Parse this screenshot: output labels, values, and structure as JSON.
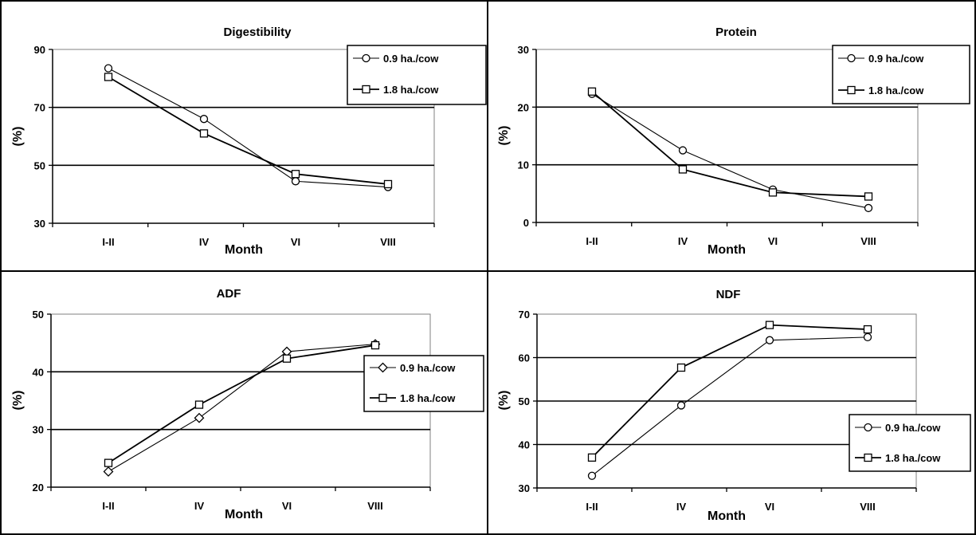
{
  "chart_data": [
    {
      "type": "line",
      "title": "Digestibility",
      "xlabel": "Month",
      "ylabel": "(%)",
      "categories": [
        "I-II",
        "IV",
        "VI",
        "VIII"
      ],
      "ylim": [
        30,
        90
      ],
      "yticks": [
        30,
        50,
        70,
        90
      ],
      "grid": "horizontal",
      "legend_position": "top-right",
      "series": [
        {
          "name": "0.9 ha./cow",
          "marker": "circle",
          "values": [
            83.5,
            66,
            44.5,
            42.5
          ]
        },
        {
          "name": "1.8 ha./cow",
          "marker": "square",
          "values": [
            80.5,
            61,
            47,
            43.5
          ]
        }
      ]
    },
    {
      "type": "line",
      "title": "Protein",
      "xlabel": "Month",
      "ylabel": "(%)",
      "categories": [
        "I-II",
        "IV",
        "VI",
        "VIII"
      ],
      "ylim": [
        0,
        30
      ],
      "yticks": [
        0,
        10,
        20,
        30
      ],
      "grid": "horizontal",
      "legend_position": "top-right",
      "series": [
        {
          "name": "0.9 ha./cow",
          "marker": "circle",
          "values": [
            22.3,
            12.5,
            5.7,
            2.5
          ]
        },
        {
          "name": "1.8 ha./cow",
          "marker": "square",
          "values": [
            22.7,
            9.2,
            5.2,
            4.5
          ]
        }
      ]
    },
    {
      "type": "line",
      "title": "ADF",
      "xlabel": "Month",
      "ylabel": "(%)",
      "categories": [
        "I-II",
        "IV",
        "VI",
        "VIII"
      ],
      "ylim": [
        20,
        50
      ],
      "yticks": [
        20,
        30,
        40,
        50
      ],
      "grid": "horizontal",
      "legend_position": "right",
      "series": [
        {
          "name": "0.9 ha./cow",
          "marker": "diamond",
          "values": [
            22.7,
            32,
            43.5,
            44.8
          ]
        },
        {
          "name": "1.8 ha./cow",
          "marker": "square",
          "values": [
            24.2,
            34.3,
            42.3,
            44.6
          ]
        }
      ]
    },
    {
      "type": "line",
      "title": "NDF",
      "xlabel": "Month",
      "ylabel": "(%)",
      "categories": [
        "I-II",
        "IV",
        "VI",
        "VIII"
      ],
      "ylim": [
        30,
        70
      ],
      "yticks": [
        30,
        40,
        50,
        60,
        70
      ],
      "grid": "horizontal",
      "legend_position": "lower-right",
      "series": [
        {
          "name": "0.9 ha./cow",
          "marker": "circle",
          "values": [
            32.8,
            49,
            64,
            64.7
          ]
        },
        {
          "name": "1.8 ha./cow",
          "marker": "square",
          "values": [
            37,
            57.7,
            67.5,
            66.5
          ]
        }
      ]
    }
  ]
}
